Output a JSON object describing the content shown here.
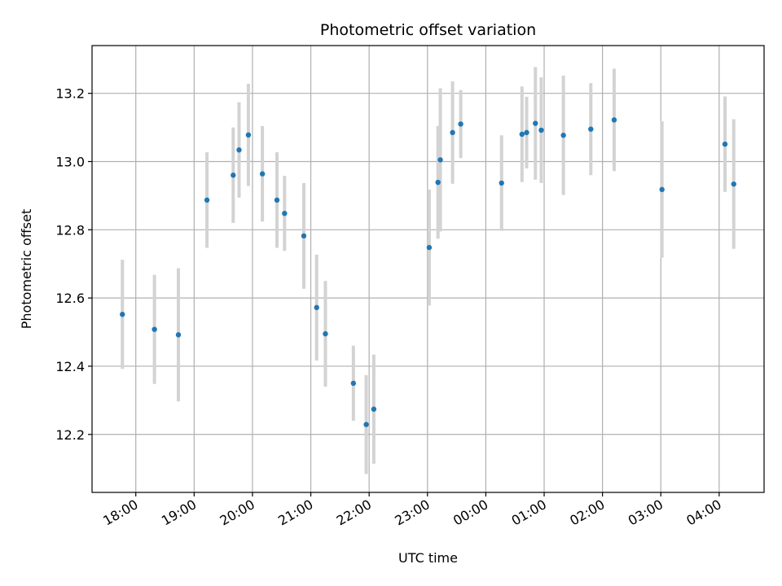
{
  "chart_data": {
    "type": "scatter",
    "title": "Photometric offset variation",
    "xlabel": "UTC time",
    "ylabel": "Photometric offset",
    "x_unit": "UTC hour (hours after 00:00 of first day; >24 = next day)",
    "xlim": [
      17.25,
      28.77
    ],
    "ylim": [
      12.03,
      13.34
    ],
    "x_ticks": [
      18,
      19,
      20,
      21,
      22,
      23,
      24,
      25,
      26,
      27,
      28
    ],
    "x_tick_labels": [
      "18:00",
      "19:00",
      "20:00",
      "21:00",
      "22:00",
      "23:00",
      "00:00",
      "01:00",
      "02:00",
      "03:00",
      "04:00"
    ],
    "y_ticks": [
      12.2,
      12.4,
      12.6,
      12.8,
      13.0,
      13.2
    ],
    "y_tick_labels": [
      "12.2",
      "12.4",
      "12.6",
      "12.8",
      "13.0",
      "13.2"
    ],
    "grid": true,
    "legend": "none",
    "colors": {
      "point": "#1f77b4",
      "errorbar": "#d3d3d3"
    },
    "points": [
      {
        "x": 17.77,
        "y": 12.552,
        "yerr": 0.16
      },
      {
        "x": 18.32,
        "y": 12.508,
        "yerr": 0.16
      },
      {
        "x": 18.73,
        "y": 12.492,
        "yerr": 0.195
      },
      {
        "x": 19.22,
        "y": 12.887,
        "yerr": 0.14
      },
      {
        "x": 19.67,
        "y": 12.96,
        "yerr": 0.14
      },
      {
        "x": 19.77,
        "y": 13.034,
        "yerr": 0.14
      },
      {
        "x": 19.93,
        "y": 13.078,
        "yerr": 0.15
      },
      {
        "x": 20.17,
        "y": 12.964,
        "yerr": 0.14
      },
      {
        "x": 20.42,
        "y": 12.887,
        "yerr": 0.14
      },
      {
        "x": 20.55,
        "y": 12.848,
        "yerr": 0.11
      },
      {
        "x": 20.88,
        "y": 12.782,
        "yerr": 0.155
      },
      {
        "x": 21.1,
        "y": 12.572,
        "yerr": 0.155
      },
      {
        "x": 21.25,
        "y": 12.495,
        "yerr": 0.155
      },
      {
        "x": 21.73,
        "y": 12.35,
        "yerr": 0.11
      },
      {
        "x": 21.95,
        "y": 12.229,
        "yerr": 0.145
      },
      {
        "x": 22.08,
        "y": 12.274,
        "yerr": 0.16
      },
      {
        "x": 23.03,
        "y": 12.748,
        "yerr": 0.17
      },
      {
        "x": 23.18,
        "y": 12.939,
        "yerr": 0.165
      },
      {
        "x": 23.22,
        "y": 13.005,
        "yerr": 0.21
      },
      {
        "x": 23.43,
        "y": 13.085,
        "yerr": 0.15
      },
      {
        "x": 23.57,
        "y": 13.11,
        "yerr": 0.1
      },
      {
        "x": 24.27,
        "y": 12.937,
        "yerr": 0.14
      },
      {
        "x": 24.62,
        "y": 13.08,
        "yerr": 0.14
      },
      {
        "x": 24.7,
        "y": 13.085,
        "yerr": 0.105
      },
      {
        "x": 24.85,
        "y": 13.112,
        "yerr": 0.165
      },
      {
        "x": 24.95,
        "y": 13.092,
        "yerr": 0.155
      },
      {
        "x": 25.33,
        "y": 13.077,
        "yerr": 0.175
      },
      {
        "x": 25.8,
        "y": 13.095,
        "yerr": 0.135
      },
      {
        "x": 26.2,
        "y": 13.122,
        "yerr": 0.15
      },
      {
        "x": 27.02,
        "y": 12.918,
        "yerr": 0.2
      },
      {
        "x": 28.1,
        "y": 13.051,
        "yerr": 0.14
      },
      {
        "x": 28.25,
        "y": 12.934,
        "yerr": 0.19
      }
    ]
  }
}
